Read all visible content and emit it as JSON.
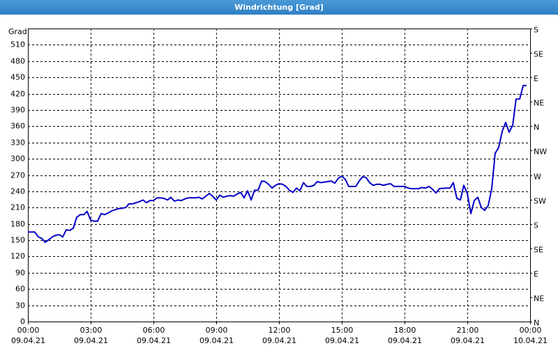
{
  "chart_data": {
    "type": "line",
    "title": "Windrichtung [Grad]",
    "y_label": "Grad",
    "color": "#0000c8",
    "grid": true,
    "xlim": [
      0,
      24
    ],
    "xticks": [
      {
        "value": 0,
        "label": "00:00\n09.04.21"
      },
      {
        "value": 3,
        "label": "03:00\n09.04.21"
      },
      {
        "value": 6,
        "label": "06:00\n09.04.21"
      },
      {
        "value": 9,
        "label": "09:00\n09.04.21"
      },
      {
        "value": 12,
        "label": "12:00\n09.04.21"
      },
      {
        "value": 15,
        "label": "15:00\n09.04.21"
      },
      {
        "value": 18,
        "label": "18:00\n09.04.21"
      },
      {
        "value": 21,
        "label": "21:00\n09.04.21"
      },
      {
        "value": 24,
        "label": "00:00\n10.04.21"
      }
    ],
    "ylim": [
      0,
      540
    ],
    "yticks": [
      0,
      30,
      60,
      90,
      120,
      150,
      180,
      210,
      240,
      270,
      300,
      330,
      360,
      390,
      420,
      450,
      480,
      510
    ],
    "y2lim": [
      0,
      540
    ],
    "y2ticks": [
      {
        "value": 0,
        "label": "N"
      },
      {
        "value": 45,
        "label": "NE"
      },
      {
        "value": 90,
        "label": "E"
      },
      {
        "value": 135,
        "label": "SE"
      },
      {
        "value": 180,
        "label": "S"
      },
      {
        "value": 225,
        "label": "SW"
      },
      {
        "value": 270,
        "label": "W"
      },
      {
        "value": 315,
        "label": "NW"
      },
      {
        "value": 360,
        "label": "N"
      },
      {
        "value": 405,
        "label": "NE"
      },
      {
        "value": 450,
        "label": "E"
      },
      {
        "value": 495,
        "label": "SE"
      },
      {
        "value": 540,
        "label": "S"
      }
    ],
    "x": [
      0,
      0.33,
      0.5,
      0.67,
      0.83,
      1,
      1.17,
      1.33,
      1.5,
      1.67,
      1.83,
      2,
      2.17,
      2.33,
      2.5,
      2.67,
      2.83,
      3,
      3.17,
      3.33,
      3.5,
      3.67,
      3.83,
      4,
      4.33,
      4.67,
      4.83,
      5,
      5.17,
      5.33,
      5.5,
      5.67,
      5.83,
      6,
      6.17,
      6.33,
      6.5,
      6.67,
      6.83,
      7,
      7.17,
      7.33,
      7.5,
      7.67,
      8,
      8.17,
      8.33,
      8.5,
      8.67,
      8.83,
      9,
      9.17,
      9.33,
      9.5,
      9.67,
      9.83,
      10,
      10.17,
      10.33,
      10.5,
      10.67,
      10.83,
      11,
      11.17,
      11.33,
      11.5,
      11.67,
      11.83,
      12,
      12.17,
      12.33,
      12.5,
      12.67,
      12.83,
      13,
      13.17,
      13.33,
      13.5,
      13.67,
      13.83,
      14,
      14.33,
      14.5,
      14.67,
      14.83,
      15,
      15.17,
      15.33,
      15.5,
      15.67,
      15.83,
      16,
      16.17,
      16.33,
      16.5,
      16.67,
      16.83,
      17,
      17.17,
      17.33,
      17.5,
      17.67,
      18,
      18.17,
      18.33,
      18.67,
      18.83,
      19,
      19.17,
      19.33,
      19.5,
      19.67,
      20,
      20.17,
      20.33,
      20.5,
      20.67,
      20.83,
      21,
      21.17,
      21.33,
      21.5,
      21.67,
      21.83,
      22,
      22.17,
      22.33,
      22.5,
      22.67,
      22.83,
      23,
      23.17,
      23.33,
      23.5,
      23.67,
      23.83
    ],
    "values": [
      165,
      165,
      156,
      153,
      146,
      151,
      156,
      159,
      160,
      156,
      169,
      168,
      172,
      192,
      197,
      197,
      203,
      187,
      185,
      185,
      199,
      197,
      200,
      204,
      208,
      210,
      217,
      217,
      219,
      221,
      224,
      219,
      223,
      223,
      228,
      228,
      227,
      224,
      229,
      222,
      224,
      223,
      226,
      228,
      228,
      229,
      226,
      231,
      236,
      231,
      224,
      233,
      229,
      231,
      232,
      231,
      235,
      238,
      228,
      241,
      224,
      242,
      242,
      259,
      258,
      253,
      246,
      251,
      254,
      253,
      249,
      242,
      238,
      246,
      241,
      256,
      249,
      249,
      251,
      258,
      256,
      258,
      259,
      255,
      264,
      268,
      262,
      249,
      249,
      249,
      259,
      267,
      265,
      256,
      251,
      253,
      253,
      251,
      253,
      254,
      249,
      249,
      249,
      246,
      245,
      245,
      247,
      246,
      249,
      244,
      237,
      245,
      246,
      246,
      256,
      227,
      224,
      251,
      236,
      199,
      223,
      229,
      210,
      205,
      214,
      246,
      310,
      321,
      351,
      367,
      349,
      362,
      410,
      410,
      435,
      435
    ]
  }
}
